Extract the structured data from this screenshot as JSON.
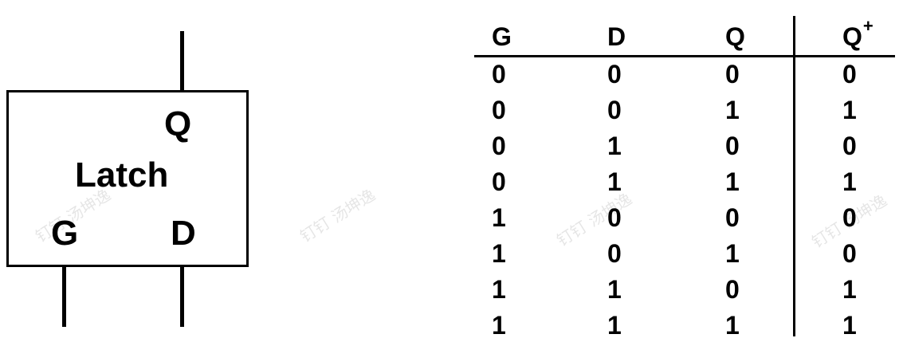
{
  "latch": {
    "label": "Latch",
    "output_q": "Q",
    "input_g": "G",
    "input_d": "D"
  },
  "truth_table": {
    "headers": {
      "g": "G",
      "d": "D",
      "q": "Q",
      "q_next_base": "Q",
      "q_next_sup": "+"
    },
    "rows": [
      {
        "g": "0",
        "d": "0",
        "q": "0",
        "q_next": "0"
      },
      {
        "g": "0",
        "d": "0",
        "q": "1",
        "q_next": "1"
      },
      {
        "g": "0",
        "d": "1",
        "q": "0",
        "q_next": "0"
      },
      {
        "g": "0",
        "d": "1",
        "q": "1",
        "q_next": "1"
      },
      {
        "g": "1",
        "d": "0",
        "q": "0",
        "q_next": "0"
      },
      {
        "g": "1",
        "d": "0",
        "q": "1",
        "q_next": "0"
      },
      {
        "g": "1",
        "d": "1",
        "q": "0",
        "q_next": "1"
      },
      {
        "g": "1",
        "d": "1",
        "q": "1",
        "q_next": "1"
      }
    ]
  },
  "watermark": {
    "text": "钉钉 汤坤逸"
  },
  "colors": {
    "ink": "#000000",
    "background": "#ffffff"
  }
}
